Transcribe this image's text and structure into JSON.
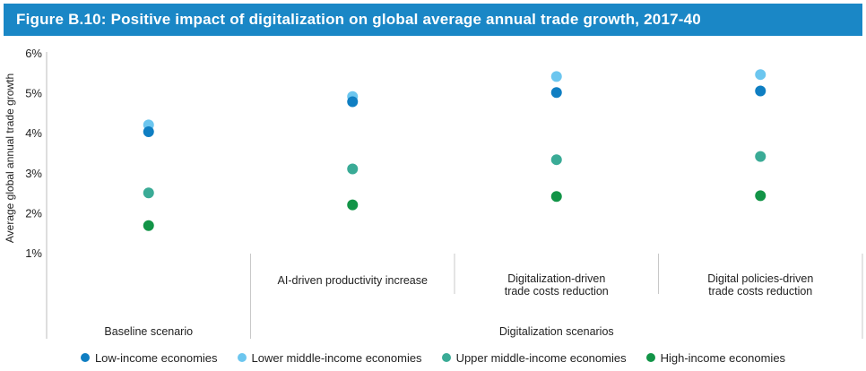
{
  "chart_data": {
    "type": "scatter",
    "title": "Figure B.10: Positive impact of digitalization on global average annual trade growth, 2017-40",
    "ylabel": "Average global annual trade growth",
    "ylim": [
      1,
      6
    ],
    "yticks": [
      "1%",
      "2%",
      "3%",
      "4%",
      "5%",
      "6%"
    ],
    "categories": [
      "",
      "AI-driven productivity increase",
      "Digitalization-driven\ntrade costs reduction",
      "Digital policies-driven\ntrade costs reduction"
    ],
    "groups": [
      {
        "label": "Baseline scenario",
        "categories": [
          0
        ]
      },
      {
        "label": "Digitalization scenarios",
        "categories": [
          1,
          2,
          3
        ]
      }
    ],
    "series": [
      {
        "name": "Low-income economies",
        "color": "#0f7ec2",
        "values": [
          4.05,
          4.8,
          5.03,
          5.07
        ]
      },
      {
        "name": "Lower middle-income economies",
        "color": "#6cc6ef",
        "values": [
          4.22,
          4.93,
          5.43,
          5.48
        ]
      },
      {
        "name": "Upper middle-income economies",
        "color": "#3aab96",
        "values": [
          2.52,
          3.12,
          3.35,
          3.43
        ]
      },
      {
        "name": "High-income economies",
        "color": "#129447",
        "values": [
          1.7,
          2.22,
          2.43,
          2.45
        ]
      }
    ],
    "grid": false,
    "legend": "bottom"
  }
}
